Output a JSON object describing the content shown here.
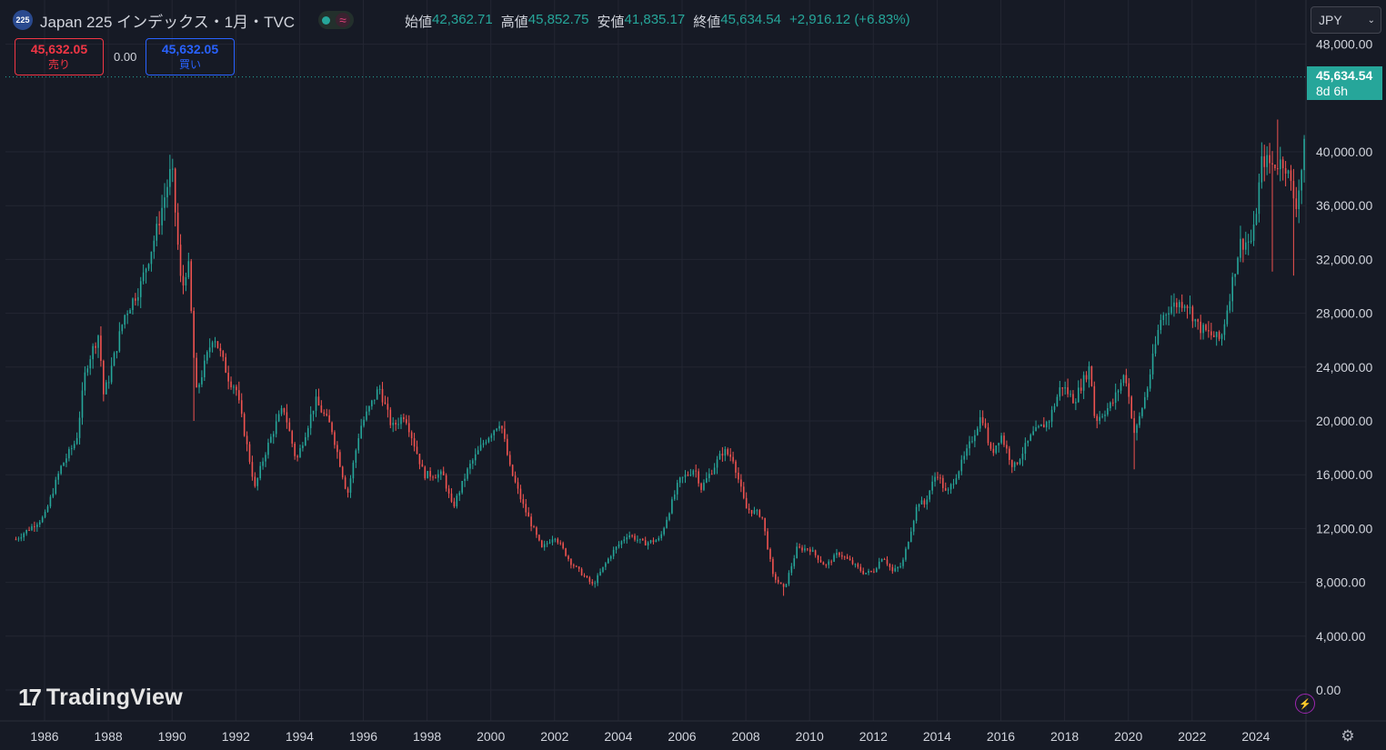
{
  "header": {
    "symbol_badge": "225",
    "title": "Japan 225 インデックス・1月・TVC",
    "ohlc": [
      {
        "label": "始値",
        "value": "42,362.71"
      },
      {
        "label": "高値",
        "value": "45,852.75"
      },
      {
        "label": "安値",
        "value": "41,835.17"
      },
      {
        "label": "終値",
        "value": "45,634.54"
      }
    ],
    "change": "+2,916.12 (+6.83%)"
  },
  "trade": {
    "sell_price": "45,632.05",
    "sell_label": "売り",
    "spread": "0.00",
    "buy_price": "45,632.05",
    "buy_label": "買い"
  },
  "currency": "JPY",
  "last_price": {
    "value": "45,634.54",
    "countdown": "8d 6h"
  },
  "logo_text": "TradingView",
  "colors": {
    "up": "#26a69a",
    "down": "#ef5350",
    "background": "#161a25",
    "grid": "#232632"
  },
  "chart_data": {
    "type": "candlestick",
    "interval": "monthly",
    "x_tick_labels": [
      "1986",
      "1988",
      "1990",
      "1992",
      "1994",
      "1996",
      "1998",
      "2000",
      "2002",
      "2004",
      "2006",
      "2008",
      "2010",
      "2012",
      "2014",
      "2016",
      "2018",
      "2020",
      "2022",
      "2024"
    ],
    "y_tick_labels": [
      "48,000.00",
      "40,000.00",
      "36,000.00",
      "32,000.00",
      "28,000.00",
      "24,000.00",
      "20,000.00",
      "16,000.00",
      "12,000.00",
      "8,000.00",
      "4,000.00",
      "0.00"
    ],
    "y_range": [
      0,
      48000
    ],
    "x_range": [
      1985.1,
      2025.8
    ],
    "last_close": 45634.54,
    "anchors": [
      [
        1985.1,
        11200
      ],
      [
        1986.0,
        12900
      ],
      [
        1986.5,
        16500
      ],
      [
        1987.0,
        18600
      ],
      [
        1987.3,
        24000
      ],
      [
        1987.7,
        26500
      ],
      [
        1987.85,
        22000
      ],
      [
        1988.0,
        23000
      ],
      [
        1988.5,
        27800
      ],
      [
        1989.0,
        30000
      ],
      [
        1989.5,
        34000
      ],
      [
        1989.99,
        38900
      ],
      [
        1990.3,
        29500
      ],
      [
        1990.5,
        32000
      ],
      [
        1990.75,
        22000
      ],
      [
        1991.0,
        24000
      ],
      [
        1991.3,
        26500
      ],
      [
        1991.8,
        23000
      ],
      [
        1992.0,
        22500
      ],
      [
        1992.6,
        15000
      ],
      [
        1992.9,
        17500
      ],
      [
        1993.3,
        20000
      ],
      [
        1993.5,
        21000
      ],
      [
        1993.9,
        17000
      ],
      [
        1994.5,
        21500
      ],
      [
        1995.0,
        19500
      ],
      [
        1995.5,
        14500
      ],
      [
        1995.9,
        19500
      ],
      [
        1996.5,
        22500
      ],
      [
        1996.9,
        19500
      ],
      [
        1997.3,
        20500
      ],
      [
        1997.9,
        16000
      ],
      [
        1998.5,
        16000
      ],
      [
        1998.8,
        13500
      ],
      [
        1999.3,
        16500
      ],
      [
        1999.8,
        18500
      ],
      [
        2000.3,
        20000
      ],
      [
        2000.6,
        16500
      ],
      [
        2001.0,
        13800
      ],
      [
        2001.6,
        10500
      ],
      [
        2002.0,
        11500
      ],
      [
        2002.5,
        9500
      ],
      [
        2003.2,
        7800
      ],
      [
        2003.8,
        10200
      ],
      [
        2004.3,
        11600
      ],
      [
        2004.8,
        10900
      ],
      [
        2005.3,
        11200
      ],
      [
        2005.9,
        15500
      ],
      [
        2006.4,
        16500
      ],
      [
        2006.6,
        15000
      ],
      [
        2007.3,
        17800
      ],
      [
        2007.6,
        17200
      ],
      [
        2008.0,
        13500
      ],
      [
        2008.5,
        13000
      ],
      [
        2008.85,
        8500
      ],
      [
        2009.2,
        7500
      ],
      [
        2009.6,
        10500
      ],
      [
        2010.0,
        10500
      ],
      [
        2010.5,
        9200
      ],
      [
        2010.9,
        10200
      ],
      [
        2011.3,
        9500
      ],
      [
        2011.7,
        8700
      ],
      [
        2012.0,
        8800
      ],
      [
        2012.3,
        10000
      ],
      [
        2012.6,
        8800
      ],
      [
        2012.9,
        9300
      ],
      [
        2013.4,
        14000
      ],
      [
        2013.6,
        13800
      ],
      [
        2013.99,
        16200
      ],
      [
        2014.3,
        14500
      ],
      [
        2014.9,
        17500
      ],
      [
        2015.4,
        20500
      ],
      [
        2015.7,
        17500
      ],
      [
        2016.0,
        19000
      ],
      [
        2016.4,
        16500
      ],
      [
        2016.99,
        19000
      ],
      [
        2017.5,
        20000
      ],
      [
        2017.9,
        22700
      ],
      [
        2018.3,
        21500
      ],
      [
        2018.8,
        24100
      ],
      [
        2018.95,
        20000
      ],
      [
        2019.5,
        21300
      ],
      [
        2019.9,
        23600
      ],
      [
        2020.2,
        18900
      ],
      [
        2020.6,
        22500
      ],
      [
        2021.0,
        27500
      ],
      [
        2021.3,
        28500
      ],
      [
        2021.8,
        28900
      ],
      [
        2022.2,
        27000
      ],
      [
        2022.5,
        26500
      ],
      [
        2022.9,
        26000
      ],
      [
        2023.5,
        33200
      ],
      [
        2023.9,
        33400
      ],
      [
        2024.2,
        39500
      ],
      [
        2024.5,
        39000
      ],
      [
        2024.6,
        39100
      ],
      [
        2024.9,
        39300
      ],
      [
        2025.1,
        37500
      ],
      [
        2025.25,
        36000
      ],
      [
        2025.4,
        38000
      ],
      [
        2025.6,
        42000
      ],
      [
        2025.7,
        45634
      ]
    ],
    "wicks": [
      [
        1989.99,
        38900
      ],
      [
        1990.7,
        20000
      ],
      [
        2003.25,
        7600
      ],
      [
        2009.2,
        7000
      ],
      [
        2020.2,
        16400
      ],
      [
        2024.55,
        31100
      ],
      [
        2024.7,
        42400
      ],
      [
        2025.2,
        30800
      ]
    ]
  }
}
